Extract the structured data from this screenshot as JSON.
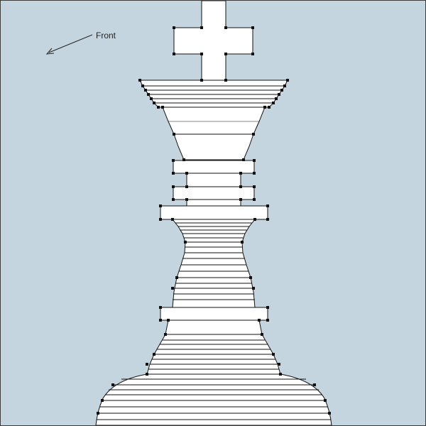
{
  "viewport": {
    "view_label": "Front",
    "background_color": "#c5d5df",
    "model_fill_color": "#ffffff",
    "edge_color": "#111111",
    "vertex_color": "#111111"
  },
  "model": {
    "name": "chess-king",
    "parts": [
      "cross",
      "crown-rim",
      "crown-cup",
      "upper-collar-rings",
      "middle-collar",
      "waist",
      "lower-collar",
      "body-flare",
      "base-dome"
    ]
  }
}
